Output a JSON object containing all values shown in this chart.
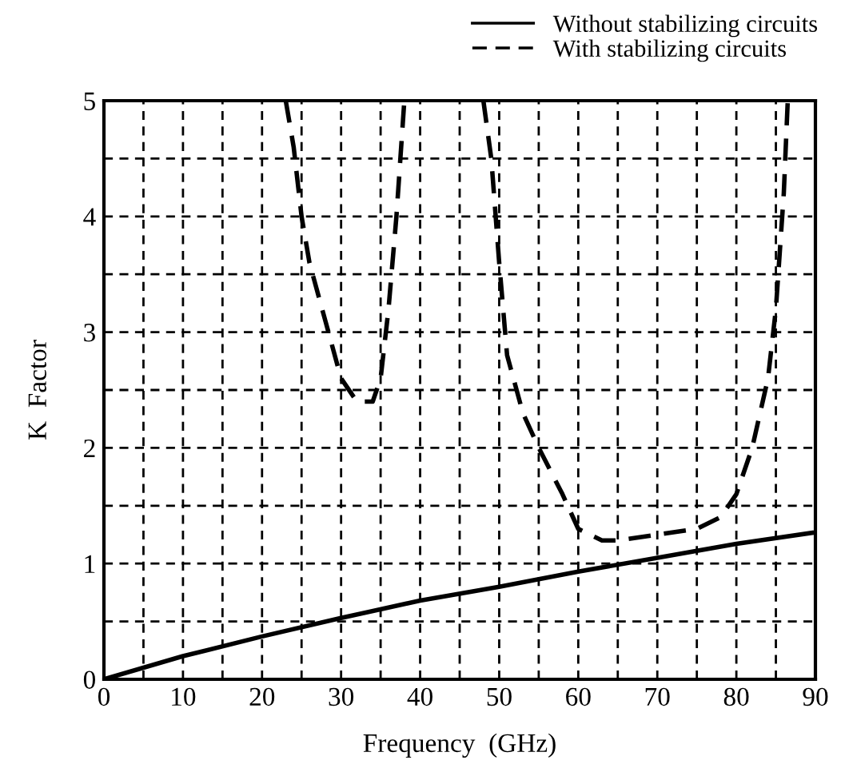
{
  "chart_data": {
    "type": "line",
    "xlabel": "Frequency  (GHz)",
    "ylabel": "K  Factor",
    "xlim": [
      0,
      90
    ],
    "ylim": [
      0,
      5
    ],
    "xticks": [
      0,
      {
        "value": 5,
        "label": null
      },
      10,
      {
        "value": 15,
        "label": null
      },
      20,
      {
        "value": 25,
        "label": null
      },
      30,
      {
        "value": 35,
        "label": null
      },
      40,
      {
        "value": 45,
        "label": null
      },
      50,
      {
        "value": 55,
        "label": null
      },
      60,
      {
        "value": 65,
        "label": null
      },
      70,
      {
        "value": 75,
        "label": null
      },
      80,
      {
        "value": 85,
        "label": null
      },
      90
    ],
    "yticks": [
      0,
      {
        "value": 0.5,
        "label": null
      },
      1,
      {
        "value": 1.5,
        "label": null
      },
      2,
      {
        "value": 2.5,
        "label": null
      },
      3,
      {
        "value": 3.5,
        "label": null
      },
      4,
      {
        "value": 4.5,
        "label": null
      },
      5
    ],
    "grid": true,
    "legend": "top right",
    "marker": "none",
    "series": [
      {
        "name": "Without stabilizing circuits",
        "color": "#000000",
        "line_style": "solid",
        "x": [
          0,
          10,
          20,
          30,
          40,
          50,
          60,
          70,
          80,
          90
        ],
        "values": [
          0,
          0.2,
          0.37,
          0.53,
          0.68,
          0.8,
          0.93,
          1.05,
          1.17,
          1.27
        ]
      },
      {
        "name": "With stabilizing circuits",
        "color": "#000000",
        "line_style": "dashed",
        "x": [
          23,
          24,
          25,
          26,
          28,
          30,
          32,
          34,
          35,
          36,
          37,
          38,
          43,
          48,
          49,
          50,
          51,
          53,
          55,
          58,
          60,
          63,
          65,
          70,
          75,
          78,
          80,
          82,
          84,
          85,
          86,
          86.5
        ],
        "values": [
          5,
          4.6,
          4.0,
          3.6,
          3.1,
          2.6,
          2.4,
          2.4,
          2.6,
          3.2,
          4.0,
          5,
          null,
          5,
          4.5,
          3.6,
          2.8,
          2.3,
          2.0,
          1.6,
          1.3,
          1.2,
          1.2,
          1.25,
          1.3,
          1.4,
          1.6,
          2.0,
          2.6,
          3.2,
          4.2,
          5
        ]
      }
    ]
  }
}
